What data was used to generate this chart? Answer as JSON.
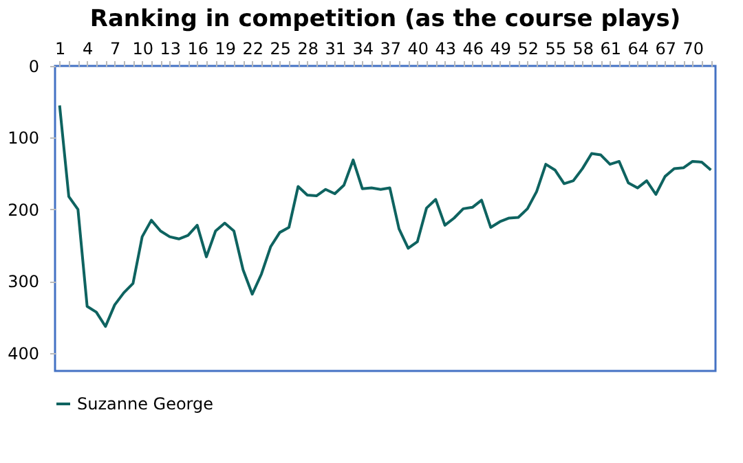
{
  "chart_data": {
    "type": "line",
    "title": "Ranking in competition (as the course plays)",
    "categories": [
      "1",
      null,
      null,
      "4",
      null,
      null,
      "7",
      null,
      null,
      "10",
      null,
      null,
      "13",
      null,
      null,
      "16",
      null,
      null,
      "19",
      null,
      null,
      "22",
      null,
      null,
      "25",
      null,
      null,
      "28",
      null,
      null,
      "31",
      null,
      null,
      "34",
      null,
      null,
      "37",
      null,
      null,
      "40",
      null,
      null,
      "43",
      null,
      null,
      "46",
      null,
      null,
      "49",
      null,
      null,
      "52",
      null,
      null,
      "55",
      null,
      null,
      "58",
      null,
      null,
      "61",
      null,
      null,
      "64",
      null,
      null,
      "67",
      null,
      null,
      "70",
      null,
      null
    ],
    "series": [
      {
        "name": "Suzanne George",
        "color": "#0e6360",
        "values": [
          55,
          182,
          200,
          335,
          343,
          363,
          333,
          316,
          303,
          238,
          215,
          230,
          238,
          241,
          236,
          222,
          266,
          230,
          219,
          230,
          284,
          318,
          290,
          252,
          232,
          225,
          168,
          180,
          181,
          172,
          178,
          166,
          131,
          171,
          170,
          172,
          170,
          227,
          254,
          245,
          198,
          186,
          222,
          212,
          199,
          197,
          187,
          225,
          217,
          212,
          211,
          199,
          175,
          137,
          145,
          164,
          160,
          143,
          122,
          124,
          137,
          133,
          163,
          170,
          160,
          179,
          154,
          143,
          142,
          133,
          134,
          145
        ]
      }
    ],
    "ylim": [
      425,
      0
    ],
    "yticks": [
      0,
      100,
      200,
      300,
      400
    ],
    "grid": false,
    "legend": "bottom",
    "marker": "none",
    "line_style": "solid"
  }
}
